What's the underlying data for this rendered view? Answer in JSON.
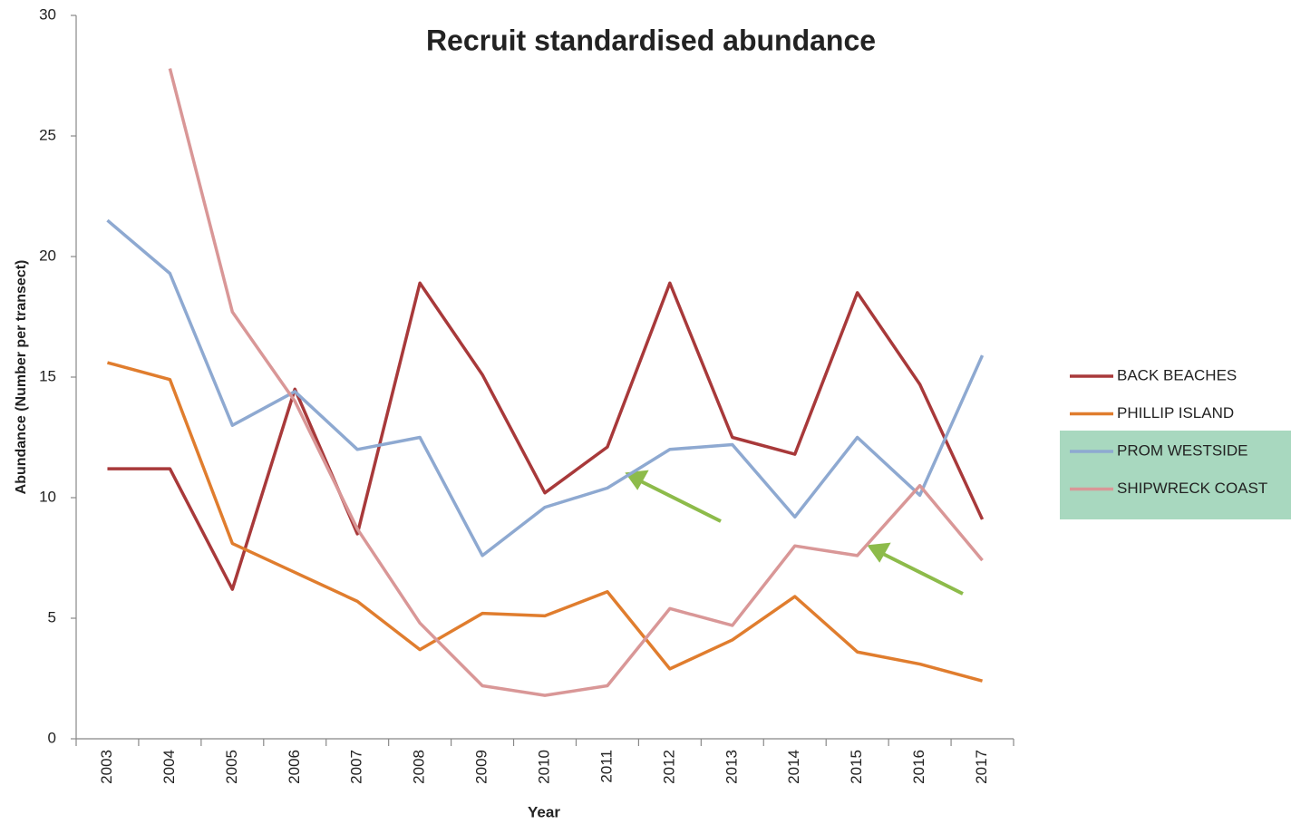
{
  "chart_data": {
    "type": "line",
    "title": "Recruit standardised abundance",
    "x_label": "Year",
    "y_label": "Abundance (Number per transect)",
    "categories": [
      "2003",
      "2004",
      "2005",
      "2006",
      "2007",
      "2008",
      "2009",
      "2010",
      "2011",
      "2012",
      "2013",
      "2014",
      "2015",
      "2016",
      "2017"
    ],
    "series": [
      {
        "name": "BACK BEACHES",
        "color": "#a8393a",
        "values": [
          11.2,
          11.2,
          6.2,
          14.5,
          8.5,
          18.9,
          15.1,
          10.2,
          12.1,
          18.9,
          12.5,
          11.8,
          18.5,
          14.7,
          9.1
        ]
      },
      {
        "name": "PHILLIP ISLAND",
        "color": "#e07d2e",
        "values": [
          15.6,
          14.9,
          8.1,
          6.9,
          5.7,
          3.7,
          5.2,
          5.1,
          6.1,
          2.9,
          4.1,
          5.9,
          3.6,
          3.1,
          2.4
        ]
      },
      {
        "name": "PROM WESTSIDE",
        "color": "#8ea9d1",
        "values": [
          21.5,
          19.3,
          13.0,
          14.4,
          12.0,
          12.5,
          7.6,
          9.6,
          10.4,
          12.0,
          12.2,
          9.2,
          12.5,
          10.1,
          15.9
        ]
      },
      {
        "name": "SHIPWRECK COAST",
        "color": "#d99797",
        "values": [
          null,
          27.8,
          17.7,
          14.0,
          8.7,
          4.8,
          2.2,
          1.8,
          2.2,
          5.4,
          4.7,
          8.0,
          7.6,
          10.5,
          7.4
        ]
      }
    ],
    "ylim": [
      0,
      30
    ],
    "yticks": [
      0,
      5,
      10,
      15,
      20,
      25,
      30
    ],
    "grid": false,
    "legend": "right"
  }
}
